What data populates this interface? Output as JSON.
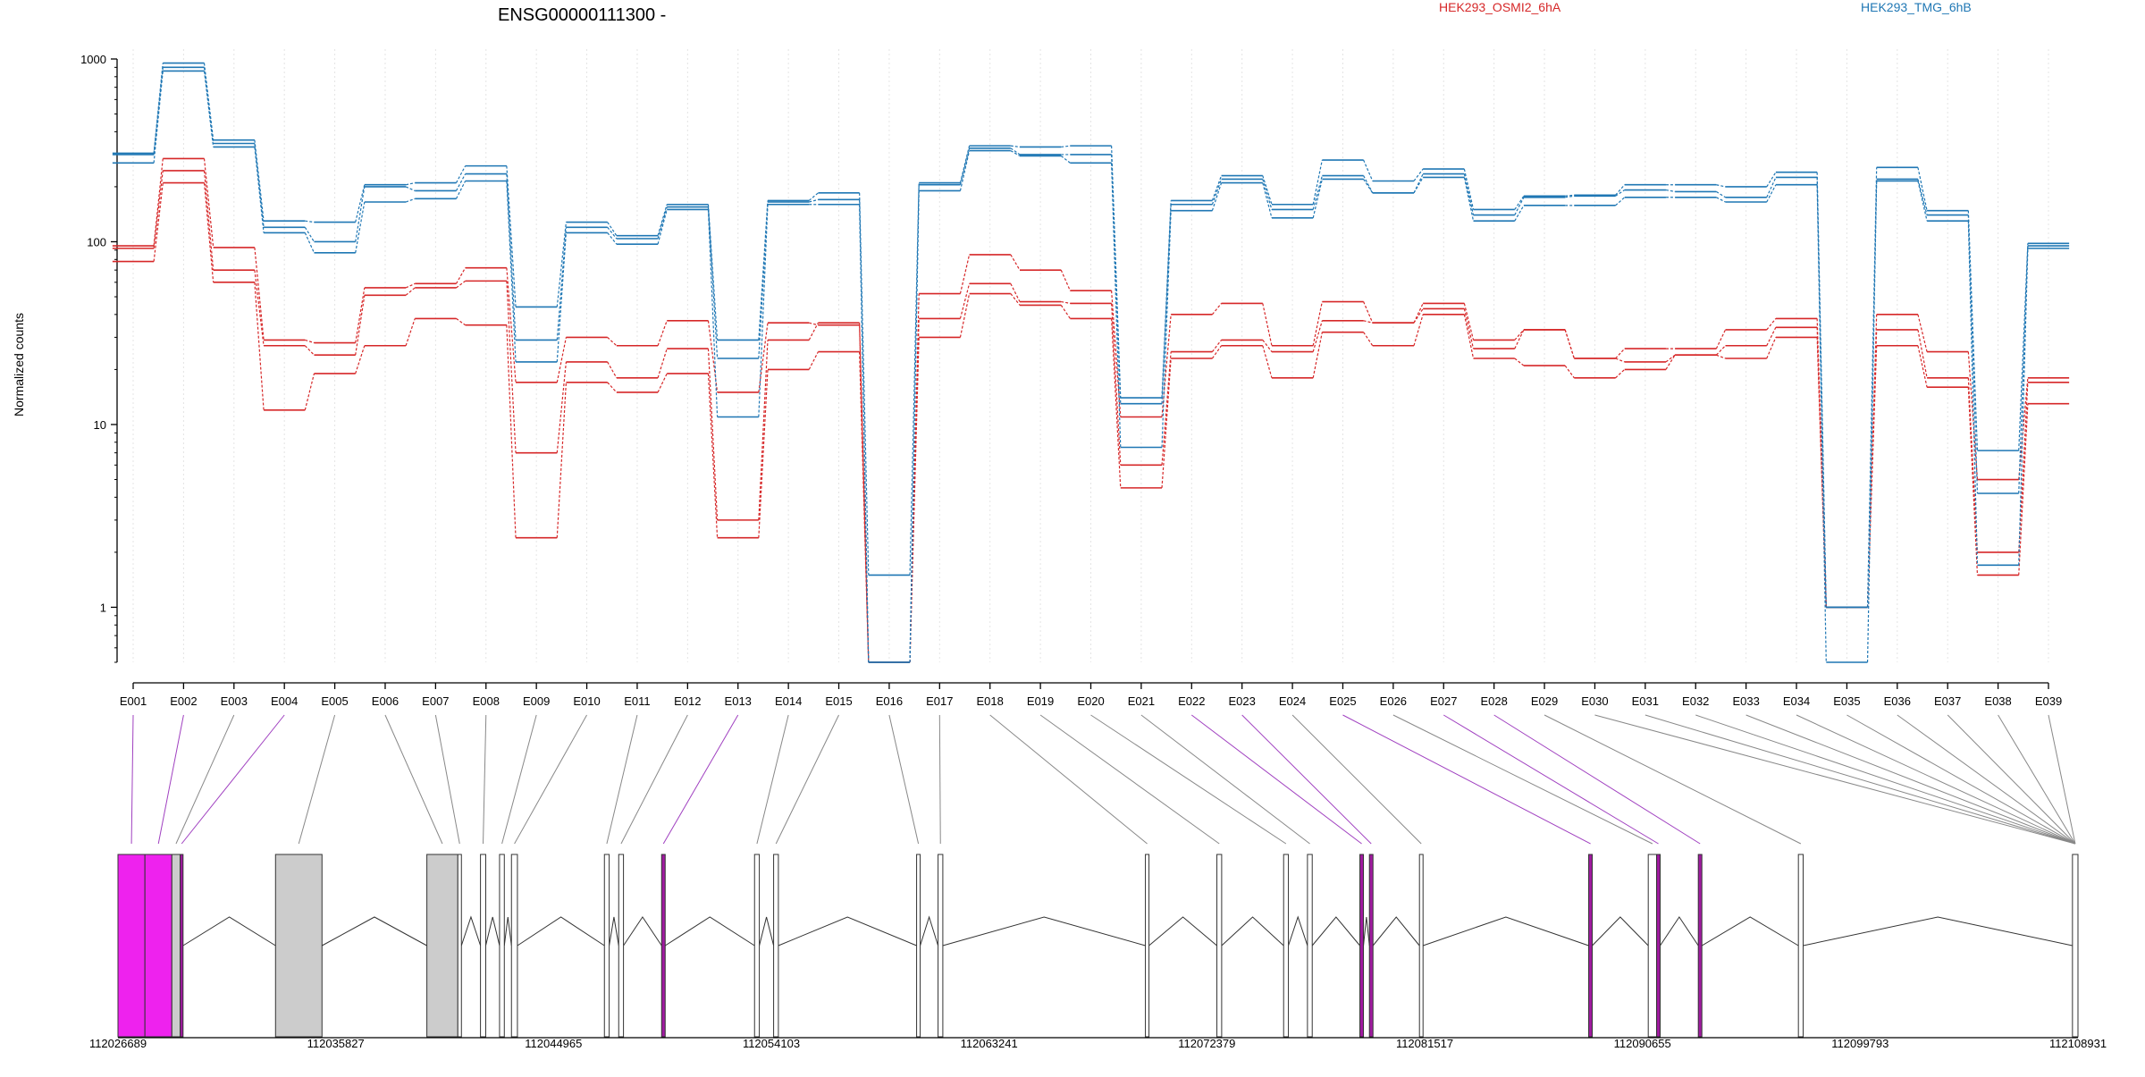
{
  "chart_data": {
    "type": "line",
    "title": "ENSG00000111300 -",
    "ylabel": "Normalized counts",
    "xlabel": "",
    "yscale": "log",
    "ylim": [
      0.5,
      1000
    ],
    "yticks": [
      "1",
      "10",
      "100",
      "1000"
    ],
    "ytick_values": [
      1,
      10,
      100,
      1000
    ],
    "grid": "vertical",
    "legend_position": "top",
    "legend": [
      {
        "name": "HEK293_OSMI2_6hA",
        "color": "#d62728"
      },
      {
        "name": "HEK293_TMG_6hB",
        "color": "#1f77b4"
      }
    ],
    "categories": [
      "E001",
      "E002",
      "E003",
      "E004",
      "E005",
      "E006",
      "E007",
      "E008",
      "E009",
      "E010",
      "E011",
      "E012",
      "E013",
      "E014",
      "E015",
      "E016",
      "E017",
      "E018",
      "E019",
      "E020",
      "E021",
      "E022",
      "E023",
      "E024",
      "E025",
      "E026",
      "E027",
      "E028",
      "E029",
      "E030",
      "E031",
      "E032",
      "E033",
      "E034",
      "E035",
      "E036",
      "E037",
      "E038",
      "E039"
    ],
    "series": [
      {
        "group": "HEK293_OSMI2_6hA",
        "color": "#d62728",
        "values": [
          95,
          285,
          93,
          29,
          28,
          56,
          59,
          72,
          17,
          30,
          27,
          37,
          15,
          36,
          35,
          0.5,
          52,
          85,
          70,
          54,
          11,
          40,
          46,
          27,
          47,
          36,
          46,
          29,
          33,
          23,
          26,
          26,
          33,
          38,
          1.0,
          40,
          25,
          5.0,
          18
        ]
      },
      {
        "group": "HEK293_OSMI2_6hA",
        "color": "#d62728",
        "values": [
          92,
          245,
          70,
          27,
          24,
          51,
          56,
          61,
          7,
          22,
          18,
          26,
          3,
          29,
          36,
          0.5,
          38,
          59,
          47,
          46,
          6,
          25,
          29,
          25,
          37,
          36,
          43,
          26,
          33,
          23,
          22,
          24,
          27,
          34,
          1.0,
          33,
          18,
          2.0,
          17
        ]
      },
      {
        "group": "HEK293_OSMI2_6hA",
        "color": "#d62728",
        "values": [
          78,
          210,
          60,
          12,
          19,
          27,
          38,
          35,
          2.4,
          17,
          15,
          19,
          2.4,
          20,
          25,
          0.5,
          30,
          52,
          45,
          38,
          4.5,
          23,
          27,
          18,
          32,
          27,
          40,
          23,
          21,
          18,
          20,
          24,
          23,
          30,
          1.0,
          27,
          16,
          1.5,
          13
        ]
      },
      {
        "group": "HEK293_TMG_6hB",
        "color": "#1f77b4",
        "values": [
          305,
          950,
          360,
          130,
          128,
          205,
          210,
          260,
          44,
          128,
          108,
          160,
          29,
          168,
          185,
          1.5,
          210,
          335,
          330,
          335,
          14,
          168,
          230,
          160,
          280,
          215,
          250,
          150,
          178,
          180,
          205,
          205,
          200,
          240,
          1.0,
          255,
          148,
          7.2,
          98
        ]
      },
      {
        "group": "HEK293_TMG_6hB",
        "color": "#1f77b4",
        "values": [
          300,
          900,
          345,
          120,
          100,
          200,
          190,
          235,
          29,
          120,
          104,
          155,
          23,
          165,
          170,
          0.5,
          205,
          325,
          300,
          300,
          13,
          160,
          220,
          150,
          230,
          185,
          235,
          140,
          175,
          178,
          192,
          188,
          175,
          225,
          1.0,
          220,
          140,
          4.2,
          95
        ]
      },
      {
        "group": "HEK293_TMG_6hB",
        "color": "#1f77b4",
        "values": [
          270,
          860,
          330,
          112,
          87,
          165,
          172,
          215,
          22,
          112,
          97,
          150,
          11,
          160,
          160,
          0.5,
          190,
          315,
          295,
          270,
          7.5,
          148,
          210,
          135,
          220,
          185,
          225,
          130,
          158,
          158,
          175,
          175,
          165,
          205,
          0.5,
          215,
          130,
          1.7,
          92
        ]
      }
    ],
    "gene_model": {
      "coordinate_ticks": [
        "112026689",
        "112035827",
        "112044965",
        "112054103",
        "112063241",
        "112072379",
        "112081517",
        "112090655",
        "112099793",
        "112108931"
      ],
      "exons": [
        {
          "id": "E001",
          "start": 112026689,
          "end": 112027820,
          "fill": "#ee22ee"
        },
        {
          "id": "E002",
          "start": 112027820,
          "end": 112028950,
          "fill": "#ee22ee"
        },
        {
          "id": "E003",
          "start": 112028950,
          "end": 112029300,
          "fill": "#cccccc"
        },
        {
          "id": "E004",
          "start": 112029300,
          "end": 112029420,
          "fill": "#a01aa0"
        },
        {
          "id": "E005",
          "start": 112033300,
          "end": 112035250,
          "fill": "#cccccc"
        },
        {
          "id": "E006",
          "start": 112039650,
          "end": 112040950,
          "fill": "#cccccc"
        },
        {
          "id": "E007",
          "start": 112040950,
          "end": 112041100,
          "fill": "#ffffff"
        },
        {
          "id": "E008",
          "start": 112041900,
          "end": 112042120,
          "fill": "#ffffff"
        },
        {
          "id": "E009",
          "start": 112042700,
          "end": 112042900,
          "fill": "#ffffff"
        },
        {
          "id": "E010",
          "start": 112043200,
          "end": 112043450,
          "fill": "#ffffff"
        },
        {
          "id": "E011",
          "start": 112047100,
          "end": 112047300,
          "fill": "#ffffff"
        },
        {
          "id": "E012",
          "start": 112047700,
          "end": 112047900,
          "fill": "#ffffff"
        },
        {
          "id": "E013",
          "start": 112049500,
          "end": 112049650,
          "fill": "#a01aa0"
        },
        {
          "id": "E014",
          "start": 112053400,
          "end": 112053600,
          "fill": "#ffffff"
        },
        {
          "id": "E015",
          "start": 112054200,
          "end": 112054400,
          "fill": "#ffffff"
        },
        {
          "id": "E016",
          "start": 112060200,
          "end": 112060350,
          "fill": "#ffffff"
        },
        {
          "id": "E017",
          "start": 112061100,
          "end": 112061300,
          "fill": "#ffffff"
        },
        {
          "id": "E018",
          "start": 112069800,
          "end": 112069950,
          "fill": "#ffffff"
        },
        {
          "id": "E019",
          "start": 112072800,
          "end": 112073000,
          "fill": "#ffffff"
        },
        {
          "id": "E020",
          "start": 112075600,
          "end": 112075800,
          "fill": "#ffffff"
        },
        {
          "id": "E021",
          "start": 112076600,
          "end": 112076800,
          "fill": "#ffffff"
        },
        {
          "id": "E022",
          "start": 112078800,
          "end": 112078950,
          "fill": "#a01aa0"
        },
        {
          "id": "E023",
          "start": 112079200,
          "end": 112079350,
          "fill": "#a01aa0"
        },
        {
          "id": "E024",
          "start": 112081300,
          "end": 112081450,
          "fill": "#ffffff"
        },
        {
          "id": "E025",
          "start": 112088400,
          "end": 112088550,
          "fill": "#a01aa0"
        },
        {
          "id": "E026",
          "start": 112090900,
          "end": 112091250,
          "fill": "#ffffff"
        },
        {
          "id": "E027",
          "start": 112091250,
          "end": 112091400,
          "fill": "#a01aa0"
        },
        {
          "id": "E028",
          "start": 112093000,
          "end": 112093150,
          "fill": "#a01aa0"
        },
        {
          "id": "E029",
          "start": 112097200,
          "end": 112097400,
          "fill": "#ffffff"
        },
        {
          "id": "E030",
          "start": 112108700,
          "end": 112108931,
          "fill": "#ffffff"
        }
      ]
    }
  }
}
